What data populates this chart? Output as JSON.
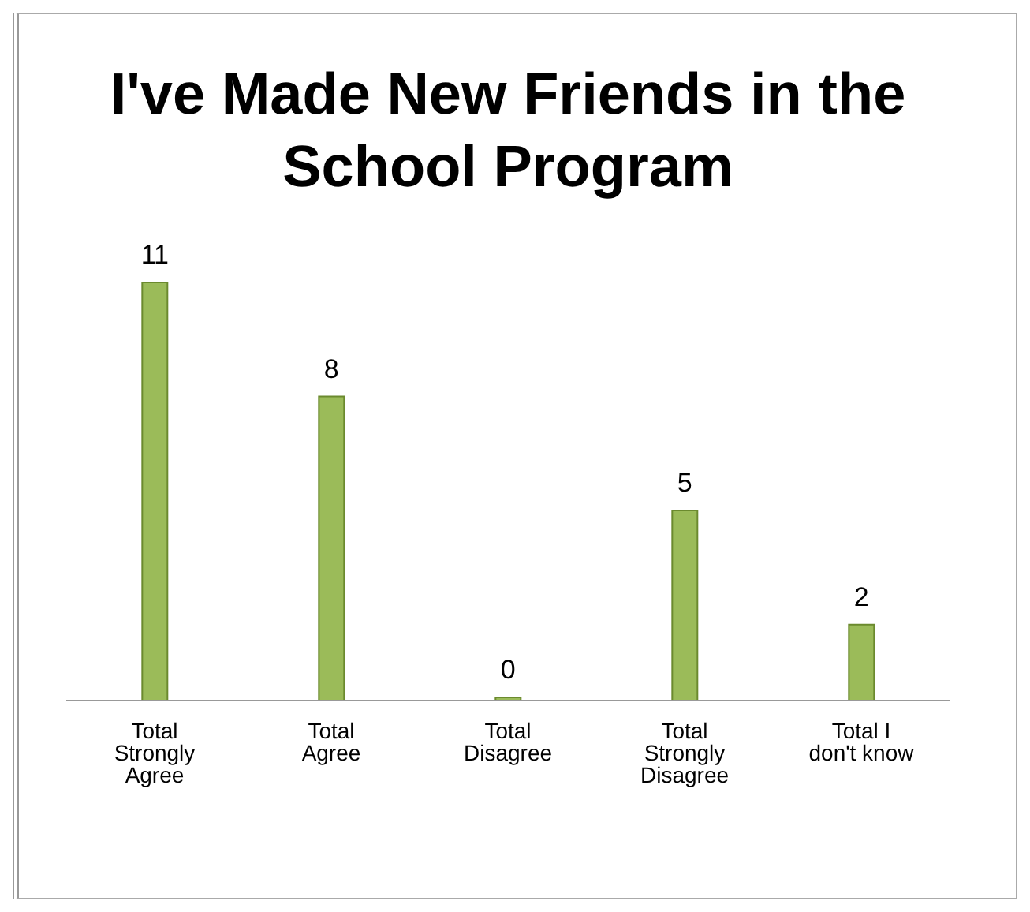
{
  "chart_data": {
    "type": "bar",
    "title": "I've Made New Friends in the School Program",
    "categories": [
      "Total Strongly Agree",
      "Total Agree",
      "Total Disagree",
      "Total Strongly Disagree",
      "Total I don't know"
    ],
    "values": [
      11,
      8,
      0,
      5,
      2
    ],
    "color": "#9bbb59",
    "data_labels": true,
    "grid": false,
    "legend": false
  }
}
